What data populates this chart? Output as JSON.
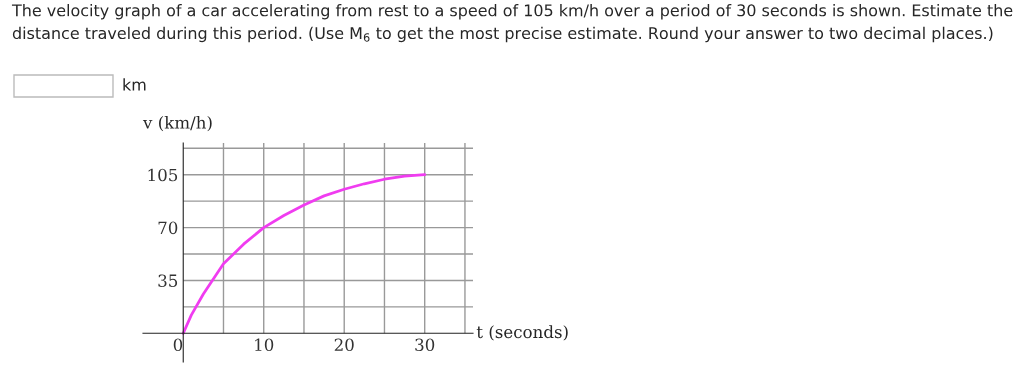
{
  "chart_data": {
    "type": "line",
    "title": "The velocity graph of a car accelerating from rest to a speed of 105 km/h over a period of 30 seconds is shown. Estimate the distance traveled during this period. (Use M$_{6}$ to get the most precise estimate. Round your answer to two decimal places.)",
    "annotations": [
      "km"
    ],
    "xlabel": "t (seconds)",
    "ylabel": "v (km/h)",
    "x": [
      0,
      1,
      2.5,
      5,
      7.5,
      10,
      12.5,
      15,
      17.5,
      20,
      22.5,
      25,
      27.5,
      30
    ],
    "series": [
      {
        "color": "#f03cf0",
        "values": [
          0,
          12,
          26,
          46,
          59,
          70,
          78,
          85,
          91,
          95.4,
          99,
          102,
          104,
          105
        ]
      }
    ],
    "xlim": [
      -5,
      36
    ],
    "ylim": [
      -19,
      126
    ],
    "xticks": [
      {
        "value": 0,
        "label": "0"
      },
      {
        "value": 5,
        "label": null
      },
      10,
      {
        "value": 15,
        "label": null
      },
      20,
      {
        "value": 25,
        "label": null
      },
      30,
      {
        "value": 35,
        "label": null
      }
    ],
    "yticks": [
      {
        "value": 17.5,
        "label": null
      },
      35,
      {
        "value": 52.5,
        "label": null
      },
      70,
      {
        "value": 87.5,
        "label": null
      },
      105,
      {
        "value": 122.5,
        "label": null
      }
    ],
    "grid": true,
    "legend": false,
    "line_style": "solid",
    "marker": "none"
  }
}
